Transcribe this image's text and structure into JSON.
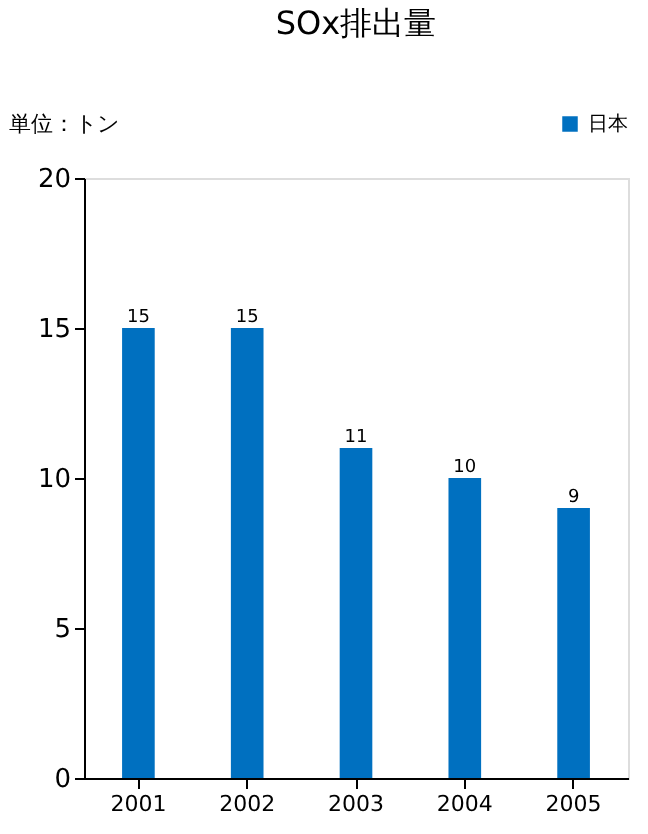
{
  "chart_data": {
    "type": "bar",
    "title": "SOx排出量",
    "ylabel": "単位：トン",
    "categories": [
      "2001",
      "2002",
      "2003",
      "2004",
      "2005"
    ],
    "series": [
      {
        "name": "日本",
        "color": "#0070c0",
        "values": [
          15,
          15,
          11,
          10,
          9
        ]
      }
    ],
    "ylim": [
      0,
      20
    ],
    "yticks": [
      0,
      5,
      10,
      15,
      20
    ],
    "grid": false,
    "legend": "top right",
    "data_labels": true
  }
}
